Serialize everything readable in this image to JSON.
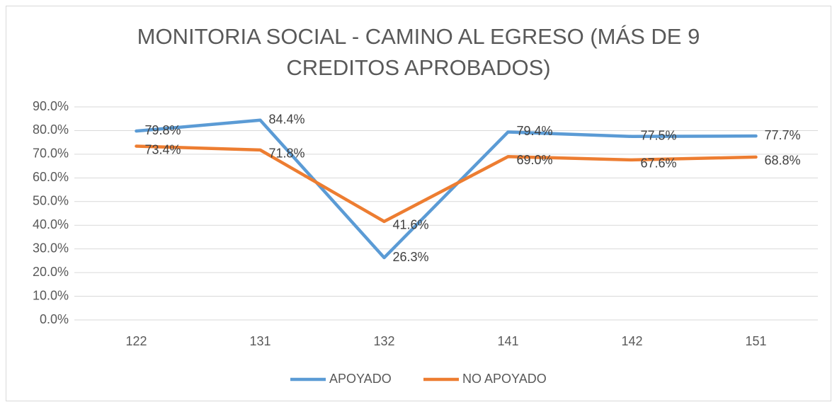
{
  "chart_data": {
    "type": "line",
    "title": "MONITORIA SOCIAL - CAMINO AL EGRESO (MÁS DE 9 CREDITOS APROBADOS)",
    "categories": [
      "122",
      "131",
      "132",
      "141",
      "142",
      "151"
    ],
    "series": [
      {
        "name": "APOYADO",
        "color": "#5b9bd5",
        "values": [
          79.8,
          84.4,
          26.3,
          79.4,
          77.5,
          77.7
        ],
        "value_labels": [
          "79.8%",
          "84.4%",
          "26.3%",
          "79.4%",
          "77.5%",
          "77.7%"
        ]
      },
      {
        "name": "NO APOYADO",
        "color": "#ed7d31",
        "values": [
          73.4,
          71.8,
          41.6,
          69.0,
          67.6,
          68.8
        ],
        "value_labels": [
          "73.4%",
          "71.8%",
          "41.6%",
          "69.0%",
          "67.6%",
          "68.8%"
        ]
      }
    ],
    "ylim": [
      0,
      90
    ],
    "yticks": [
      {
        "value": 0,
        "label": "0.0%"
      },
      {
        "value": 10,
        "label": "10.0%"
      },
      {
        "value": 20,
        "label": "20.0%"
      },
      {
        "value": 30,
        "label": "30.0%"
      },
      {
        "value": 40,
        "label": "40.0%"
      },
      {
        "value": 50,
        "label": "50.0%"
      },
      {
        "value": 60,
        "label": "60.0%"
      },
      {
        "value": 70,
        "label": "70.0%"
      },
      {
        "value": 80,
        "label": "80.0%"
      },
      {
        "value": 90,
        "label": "90.0%"
      }
    ],
    "grid": true,
    "legend": "bottom"
  }
}
